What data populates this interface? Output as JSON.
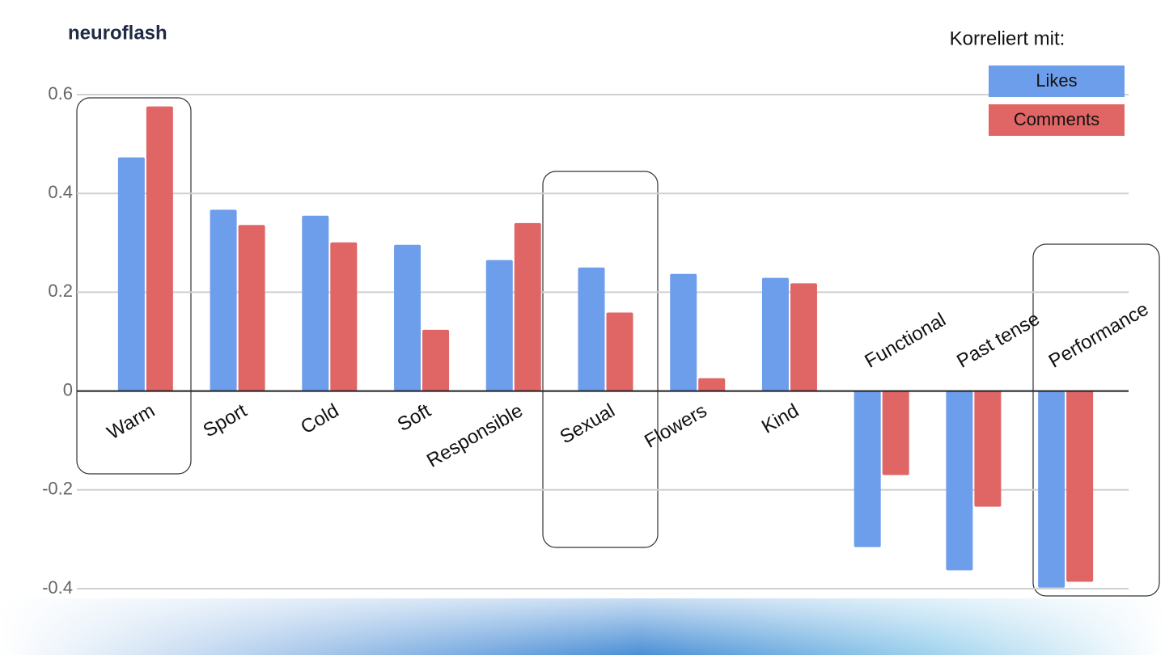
{
  "logo": "neuroflash",
  "chart_data": {
    "type": "bar",
    "legend_title": "Korreliert mit:",
    "categories": [
      "Warm",
      "Sport",
      "Cold",
      "Soft",
      "Responsible",
      "Sexual",
      "Flowers",
      "Kind",
      "Functional",
      "Past tense",
      "Performance"
    ],
    "series": [
      {
        "name": "Likes",
        "color": "#6d9eeb",
        "values": [
          0.473,
          0.367,
          0.355,
          0.296,
          0.265,
          0.25,
          0.237,
          0.229,
          -0.316,
          -0.363,
          -0.398
        ]
      },
      {
        "name": "Comments",
        "color": "#e06666",
        "values": [
          0.576,
          0.336,
          0.301,
          0.124,
          0.34,
          0.159,
          0.026,
          0.218,
          -0.17,
          -0.234,
          -0.386
        ]
      }
    ],
    "ylim": [
      -0.4,
      0.6
    ],
    "yticks": [
      -0.4,
      -0.2,
      0,
      0.2,
      0.4,
      0.6
    ],
    "grid": true,
    "legend": "top-right"
  }
}
